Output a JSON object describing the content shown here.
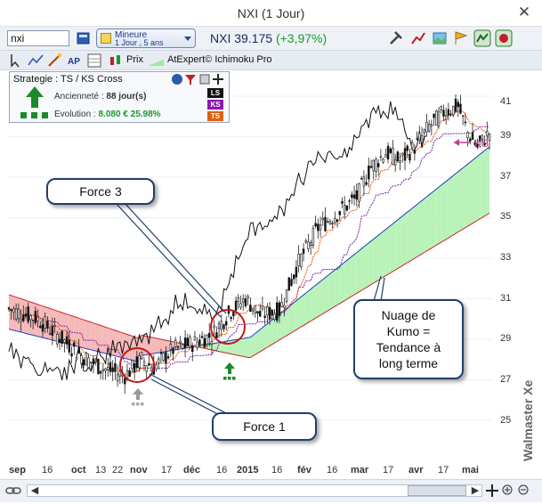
{
  "window": {
    "title": "NXI (1 Jour)",
    "close_glyph": "✕"
  },
  "toolbar": {
    "symbol_value": "nxi",
    "period_line1": "Mineure",
    "period_line2": "1 Jour , 5 ans",
    "quote_symbol": "NXI",
    "quote_price": "39.175",
    "quote_change": "(+3,97%)",
    "prix_label": "Prix",
    "indicator_label": "AtExpert© Ichimoku Pro"
  },
  "strategy": {
    "title": "Strategie : TS / KS Cross",
    "anciennete_label": "Ancienneté :",
    "anciennete_value": "88 jour(s)",
    "evolution_label": "Evolution :",
    "evolution_value": "8.080 € 25.98%",
    "tags": [
      "LS",
      "KS",
      "TS"
    ]
  },
  "chart_data": {
    "type": "candlestick",
    "y_ticks": [
      "41",
      "39",
      "37",
      "35",
      "33",
      "31",
      "29",
      "27",
      "25"
    ],
    "x_ticks": [
      "sep",
      "16",
      "oct",
      "13",
      "22",
      "nov",
      "17",
      "déc",
      "16",
      "2015",
      "16",
      "fév",
      "16",
      "mar",
      "17",
      "avr",
      "17",
      "mai"
    ],
    "ylim": [
      24,
      42
    ],
    "annotation_ks": "KS"
  },
  "callouts": {
    "force3": "Force 3",
    "force1": "Force 1",
    "kumo_l1": "Nuage de",
    "kumo_l2": "Kumo =",
    "kumo_l3": "Tendance à",
    "kumo_l4": "long terme"
  },
  "watermark": "Walmaster Xe",
  "colors": {
    "kumo_bull": "#b8f2b8",
    "kumo_bear": "#f5b8b8",
    "senkou_b": "#c62828",
    "senkou_a": "#1a3fc0",
    "kijun": "#7b1fa2",
    "tenkan": "#e65100"
  }
}
